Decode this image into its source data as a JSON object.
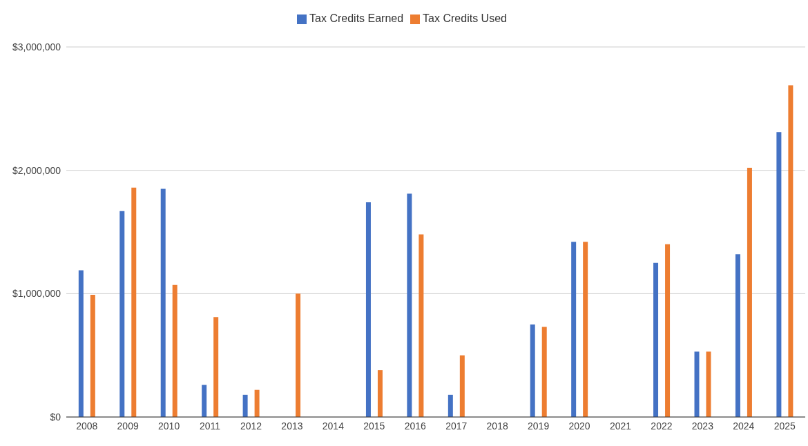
{
  "chart_data": {
    "type": "bar",
    "categories": [
      "2008",
      "2009",
      "2010",
      "2011",
      "2012",
      "2013",
      "2014",
      "2015",
      "2016",
      "2017",
      "2018",
      "2019",
      "2020",
      "2021",
      "2022",
      "2023",
      "2024",
      "2025"
    ],
    "series": [
      {
        "name": "Tax Credits Earned",
        "color": "#4472c4",
        "values": [
          1190000,
          1670000,
          1850000,
          260000,
          180000,
          0,
          0,
          1740000,
          1810000,
          180000,
          0,
          750000,
          1420000,
          0,
          1250000,
          530000,
          1320000,
          2310000
        ]
      },
      {
        "name": "Tax Credits Used",
        "color": "#ed7d31",
        "values": [
          990000,
          1860000,
          1070000,
          810000,
          220000,
          1000000,
          0,
          380000,
          1480000,
          500000,
          0,
          730000,
          1420000,
          0,
          1400000,
          530000,
          2020000,
          2690000
        ]
      }
    ],
    "ylim": [
      0,
      3000000
    ],
    "yticks": [
      {
        "value": 0,
        "label": "$0"
      },
      {
        "value": 1000000,
        "label": "$1,000,000"
      },
      {
        "value": 2000000,
        "label": "$2,000,000"
      },
      {
        "value": 3000000,
        "label": "$3,000,000"
      }
    ],
    "grid": "y",
    "legend": "top"
  }
}
